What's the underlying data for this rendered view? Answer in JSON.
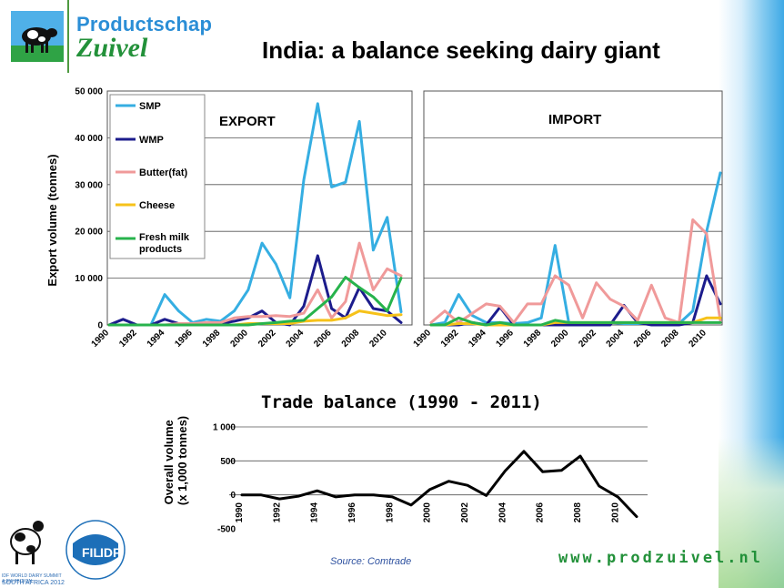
{
  "header": {
    "brand_line1": "Productschap",
    "brand_line2": "Zuivel",
    "title": "India: a balance seeking dairy giant"
  },
  "colors": {
    "smp": "#35aee2",
    "wmp": "#1c1c8c",
    "butter": "#f09a9a",
    "cheese": "#f6c21a",
    "fresh": "#27b34c",
    "trade_line": "#000000",
    "brand_blue": "#2b8ed6",
    "brand_green": "#23913a"
  },
  "shared": {
    "ylabel": "Export volume (tonnes)",
    "yticks": [
      "50 000",
      "40 000",
      "30 000",
      "20 000",
      "10 000",
      "0"
    ],
    "ytick_values": [
      50000,
      40000,
      30000,
      20000,
      10000,
      0
    ],
    "xtick_labels": [
      "1990",
      "1992",
      "1994",
      "1996",
      "1998",
      "2000",
      "2002",
      "2004",
      "2006",
      "2008",
      "2010"
    ]
  },
  "chart_data": [
    {
      "type": "line",
      "title": "EXPORT",
      "ylabel": "Export volume (tonnes)",
      "ylim": [
        0,
        50000
      ],
      "x": [
        1990,
        1991,
        1992,
        1993,
        1994,
        1995,
        1996,
        1997,
        1998,
        1999,
        2000,
        2001,
        2002,
        2003,
        2004,
        2005,
        2006,
        2007,
        2008,
        2009,
        2010,
        2011
      ],
      "legend": "top-left",
      "grid": true,
      "series": [
        {
          "name": "SMP",
          "color_key": "smp",
          "values": [
            0,
            0,
            0,
            0,
            6500,
            3000,
            500,
            1200,
            800,
            3000,
            7500,
            17500,
            13000,
            5800,
            31000,
            47300,
            29500,
            30500,
            43500,
            16000,
            23000,
            2800
          ]
        },
        {
          "name": "WMP",
          "color_key": "wmp",
          "values": [
            0,
            1200,
            0,
            0,
            1200,
            300,
            200,
            0,
            300,
            800,
            1500,
            3000,
            500,
            0,
            4000,
            14800,
            3500,
            1500,
            8000,
            3500,
            3000,
            500
          ]
        },
        {
          "name": "Butter(fat)",
          "color_key": "butter",
          "values": [
            0,
            0,
            0,
            0,
            0,
            300,
            300,
            500,
            500,
            1500,
            1800,
            1800,
            2000,
            1800,
            2500,
            7500,
            1500,
            5000,
            17500,
            7500,
            12000,
            10500
          ]
        },
        {
          "name": "Cheese",
          "color_key": "cheese",
          "values": [
            0,
            0,
            0,
            0,
            0,
            0,
            0,
            0,
            0,
            0,
            300,
            300,
            300,
            300,
            800,
            1000,
            1000,
            1500,
            3000,
            2500,
            2000,
            2200
          ]
        },
        {
          "name": "Fresh milk products",
          "color_key": "fresh",
          "values": [
            0,
            0,
            0,
            0,
            0,
            0,
            0,
            0,
            0,
            0,
            0,
            300,
            500,
            800,
            1000,
            3500,
            6000,
            10200,
            8000,
            6000,
            3000,
            10000
          ]
        }
      ]
    },
    {
      "type": "line",
      "title": "IMPORT",
      "ylim": [
        0,
        50000
      ],
      "x": [
        1990,
        1991,
        1992,
        1993,
        1994,
        1995,
        1996,
        1997,
        1998,
        1999,
        2000,
        2001,
        2002,
        2003,
        2004,
        2005,
        2006,
        2007,
        2008,
        2009,
        2010,
        2011
      ],
      "grid": true,
      "series": [
        {
          "name": "SMP",
          "color_key": "smp",
          "values": [
            0,
            500,
            6500,
            2000,
            500,
            500,
            300,
            500,
            1500,
            17000,
            500,
            300,
            300,
            500,
            300,
            300,
            300,
            300,
            300,
            3000,
            20000,
            32500
          ]
        },
        {
          "name": "WMP",
          "color_key": "wmp",
          "values": [
            0,
            0,
            0,
            500,
            0,
            3800,
            0,
            0,
            0,
            0,
            0,
            0,
            0,
            0,
            4200,
            500,
            0,
            0,
            0,
            500,
            10500,
            4500
          ]
        },
        {
          "name": "Butter(fat)",
          "color_key": "butter",
          "values": [
            500,
            3000,
            500,
            2500,
            4500,
            4000,
            500,
            4500,
            4500,
            10500,
            8500,
            1500,
            9000,
            5500,
            4000,
            1000,
            8500,
            1500,
            500,
            22500,
            19500,
            1000
          ]
        },
        {
          "name": "Cheese",
          "color_key": "cheese",
          "values": [
            0,
            0,
            300,
            300,
            0,
            0,
            0,
            0,
            0,
            500,
            500,
            500,
            500,
            500,
            500,
            500,
            500,
            500,
            500,
            500,
            1500,
            1500
          ]
        },
        {
          "name": "Fresh milk products",
          "color_key": "fresh",
          "values": [
            0,
            0,
            1500,
            500,
            0,
            500,
            0,
            0,
            0,
            1000,
            500,
            500,
            500,
            500,
            500,
            500,
            500,
            500,
            500,
            500,
            500,
            500
          ]
        }
      ]
    },
    {
      "type": "line",
      "title": "Trade balance (1990 - 2011)",
      "ylabel": "Overall volume (x 1,000 tonnes)",
      "ylim": [
        -500,
        1000
      ],
      "yticks": [
        "1 000",
        "500",
        "0",
        "-500"
      ],
      "ytick_values": [
        1000,
        500,
        0,
        -500
      ],
      "xtick_labels": [
        "1990",
        "1992",
        "1994",
        "1996",
        "1998",
        "2000",
        "2002",
        "2004",
        "2006",
        "2008",
        "2010"
      ],
      "x": [
        1990,
        1991,
        1992,
        1993,
        1994,
        1995,
        1996,
        1997,
        1998,
        1999,
        2000,
        2001,
        2002,
        2003,
        2004,
        2005,
        2006,
        2007,
        2008,
        2009,
        2010,
        2011
      ],
      "grid": true,
      "series": [
        {
          "values": [
            0,
            0,
            -60,
            -20,
            60,
            -30,
            0,
            0,
            -30,
            -150,
            80,
            200,
            140,
            -10,
            350,
            640,
            340,
            360,
            570,
            130,
            -30,
            -320
          ]
        }
      ]
    }
  ],
  "footer": {
    "source": "Source: Comtrade",
    "website": "www.prodzuivel.nl",
    "fil_left": "FIL",
    "fil_right": "IDF",
    "summit_small": "IDF WORLD DAIRY SUMMIT & EXHIBITION",
    "summit_big": "SOUTH AFRICA 2012"
  }
}
